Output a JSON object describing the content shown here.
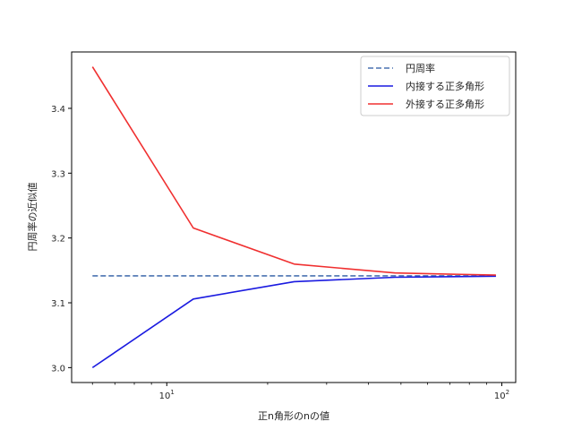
{
  "chart_data": {
    "type": "line",
    "title": "",
    "xlabel": "正n角形のnの値",
    "ylabel": "円周率の近似値",
    "xscale": "log",
    "x": [
      6,
      12,
      24,
      48,
      96
    ],
    "xlim": [
      5.2,
      110
    ],
    "ylim": [
      2.977,
      3.487
    ],
    "xticks": [
      {
        "value": 10,
        "label": "10¹",
        "base": "10",
        "exp": "1"
      },
      {
        "value": 100,
        "label": "10²",
        "base": "10",
        "exp": "2"
      }
    ],
    "yticks": [
      {
        "value": 3.0,
        "label": "3.0"
      },
      {
        "value": 3.1,
        "label": "3.1"
      },
      {
        "value": 3.2,
        "label": "3.2"
      },
      {
        "value": 3.3,
        "label": "3.3"
      },
      {
        "value": 3.4,
        "label": "3.4"
      }
    ],
    "grid": false,
    "legend_position": "upper right",
    "series": [
      {
        "name": "円周率",
        "style": "dashed",
        "color": "#4a72b0",
        "values": [
          3.14159,
          3.14159,
          3.14159,
          3.14159,
          3.14159
        ]
      },
      {
        "name": "内接する正多角形",
        "style": "solid",
        "color": "#1a1ae0",
        "values": [
          3.0,
          3.1058,
          3.1326,
          3.1394,
          3.141
        ]
      },
      {
        "name": "外接する正多角形",
        "style": "solid",
        "color": "#f03030",
        "values": [
          3.4641,
          3.2154,
          3.1597,
          3.1461,
          3.1427
        ]
      }
    ]
  }
}
